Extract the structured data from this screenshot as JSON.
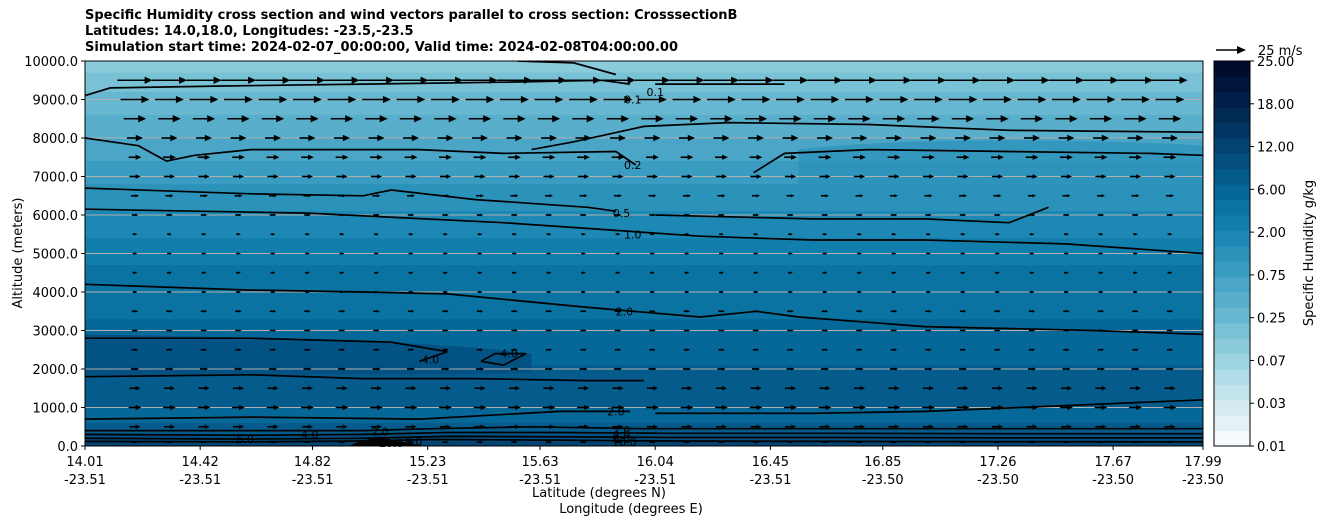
{
  "titles": [
    "Specific Humidity cross section and wind vectors parallel to cross section: CrosssectionB",
    "Latitudes: 14.0,18.0, Longitudes: -23.5,-23.5",
    "Simulation start time: 2024-02-07_00:00:00, Valid time: 2024-02-08T04:00:00.00"
  ],
  "chart_data": {
    "type": "heatmap",
    "xlabel_lat": "Latitude (degrees N)",
    "xlabel_lon": "Longitude (degrees E)",
    "ylabel": "Altitude (meters)",
    "ylim": [
      0,
      10000
    ],
    "yticks": [
      0,
      1000,
      2000,
      3000,
      4000,
      5000,
      6000,
      7000,
      8000,
      9000,
      10000
    ],
    "ytick_labels": [
      "0.0",
      "1000.0",
      "2000.0",
      "3000.0",
      "4000.0",
      "5000.0",
      "6000.0",
      "7000.0",
      "8000.0",
      "9000.0",
      "10000.0"
    ],
    "xticks_lat": [
      "14.01",
      "14.42",
      "14.82",
      "15.23",
      "15.63",
      "16.04",
      "16.45",
      "16.85",
      "17.26",
      "17.67",
      "17.99"
    ],
    "xticks_lon": [
      "-23.51",
      "-23.51",
      "-23.51",
      "-23.51",
      "-23.51",
      "-23.51",
      "-23.51",
      "-23.50",
      "-23.50",
      "-23.50",
      "-23.50"
    ],
    "grid": "horizontal",
    "colorbar": {
      "label": "Specific Humidity g/kg",
      "ticks": [
        "0.01",
        "0.03",
        "0.07",
        "0.25",
        "0.75",
        "2.00",
        "6.00",
        "12.00",
        "18.00",
        "25.00"
      ],
      "colors": [
        "#f7fbfd",
        "#e4f2f6",
        "#d3ebf1",
        "#c2e4ec",
        "#b0dde7",
        "#9ed5e2",
        "#8ccbdc",
        "#79c2d6",
        "#68b7d0",
        "#58aecb",
        "#4aa5c6",
        "#3a9cc0",
        "#2b92ba",
        "#1d88b3",
        "#117eab",
        "#0a73a2",
        "#066898",
        "#055c8c",
        "#044f80",
        "#034371",
        "#023662",
        "#012a55",
        "#011f48",
        "#00153b",
        "#000b2e"
      ]
    },
    "quiver_key": {
      "label": "25 m/s",
      "value": 25
    },
    "contour_levels": [
      "0.1",
      "0.2",
      "0.5",
      "1.0",
      "2.0",
      "4.0",
      "6.0",
      "8.0",
      "10.0"
    ],
    "contour_labels": [
      {
        "text": "0.1",
        "lat": 16.04,
        "alt": 9200
      },
      {
        "text": "0.1",
        "lat": 15.96,
        "alt": 9000
      },
      {
        "text": "0.2",
        "lat": 15.96,
        "alt": 7300
      },
      {
        "text": "0.5",
        "lat": 15.92,
        "alt": 6050
      },
      {
        "text": "1.0",
        "lat": 15.96,
        "alt": 5500
      },
      {
        "text": "2.0",
        "lat": 15.93,
        "alt": 3500
      },
      {
        "text": "4.0",
        "lat": 15.24,
        "alt": 2250
      },
      {
        "text": "4.0",
        "lat": 15.52,
        "alt": 2400
      },
      {
        "text": "2.0",
        "lat": 15.9,
        "alt": 900
      },
      {
        "text": "2.0",
        "lat": 15.92,
        "alt": 420
      },
      {
        "text": "4.0",
        "lat": 15.92,
        "alt": 300
      },
      {
        "text": "6.0",
        "lat": 15.92,
        "alt": 180
      },
      {
        "text": "10.0",
        "lat": 15.93,
        "alt": 100
      },
      {
        "text": "4.0",
        "lat": 14.81,
        "alt": 300
      },
      {
        "text": "2.0",
        "lat": 15.06,
        "alt": 380
      },
      {
        "text": "6.0",
        "lat": 14.58,
        "alt": 180
      },
      {
        "text": "10.0",
        "lat": 15.1,
        "alt": 80
      },
      {
        "text": "8.0",
        "lat": 15.18,
        "alt": 120
      }
    ],
    "wind_rows": [
      {
        "alt": 9500,
        "speed": 22
      },
      {
        "alt": 9000,
        "speed": 18
      },
      {
        "alt": 8500,
        "speed": 14
      },
      {
        "alt": 8000,
        "speed": 10
      },
      {
        "alt": 7500,
        "speed": 8
      },
      {
        "alt": 7000,
        "speed": 7
      },
      {
        "alt": 6500,
        "speed": 5
      },
      {
        "alt": 6000,
        "speed": 4
      },
      {
        "alt": 5500,
        "speed": 3
      },
      {
        "alt": 5000,
        "speed": 3
      },
      {
        "alt": 4500,
        "speed": 3
      },
      {
        "alt": 4000,
        "speed": 3
      },
      {
        "alt": 3500,
        "speed": 4
      },
      {
        "alt": 3000,
        "speed": 4
      },
      {
        "alt": 2500,
        "speed": 4
      },
      {
        "alt": 2000,
        "speed": 5
      },
      {
        "alt": 1500,
        "speed": 7
      },
      {
        "alt": 1000,
        "speed": 8
      },
      {
        "alt": 500,
        "speed": 7
      },
      {
        "alt": 100,
        "speed": 4
      }
    ]
  }
}
